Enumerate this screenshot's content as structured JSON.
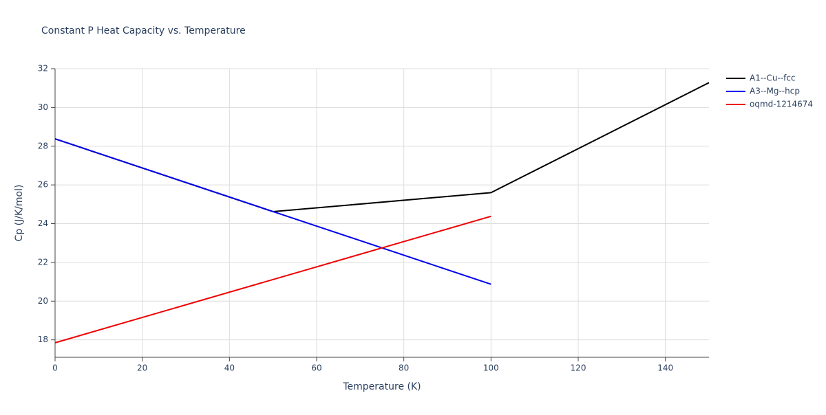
{
  "chart_data": {
    "type": "line",
    "title": "Constant P Heat Capacity vs. Temperature",
    "x_label": "Temperature (K)",
    "y_label": "Cp (J/K/mol)",
    "series": [
      {
        "name": "A1--Cu--fcc",
        "color": "#000000",
        "x": [
          0,
          50,
          100,
          150
        ],
        "values": [
          28.38,
          24.62,
          25.6,
          31.28
        ]
      },
      {
        "name": "A3--Mg--hcp",
        "color": "#0000ee",
        "x": [
          0,
          100
        ],
        "values": [
          28.38,
          20.87
        ]
      },
      {
        "name": "oqmd-1214674",
        "color": "#ee0000",
        "x": [
          0,
          100
        ],
        "values": [
          17.85,
          24.38
        ]
      }
    ],
    "xlim": [
      0,
      150
    ],
    "xticks": [
      0,
      20,
      40,
      60,
      80,
      100,
      120,
      140
    ],
    "ylim": [
      17.1,
      32
    ],
    "yticks": [
      18,
      20,
      22,
      24,
      26,
      28,
      30,
      32
    ],
    "grid": true,
    "legend": "right"
  }
}
